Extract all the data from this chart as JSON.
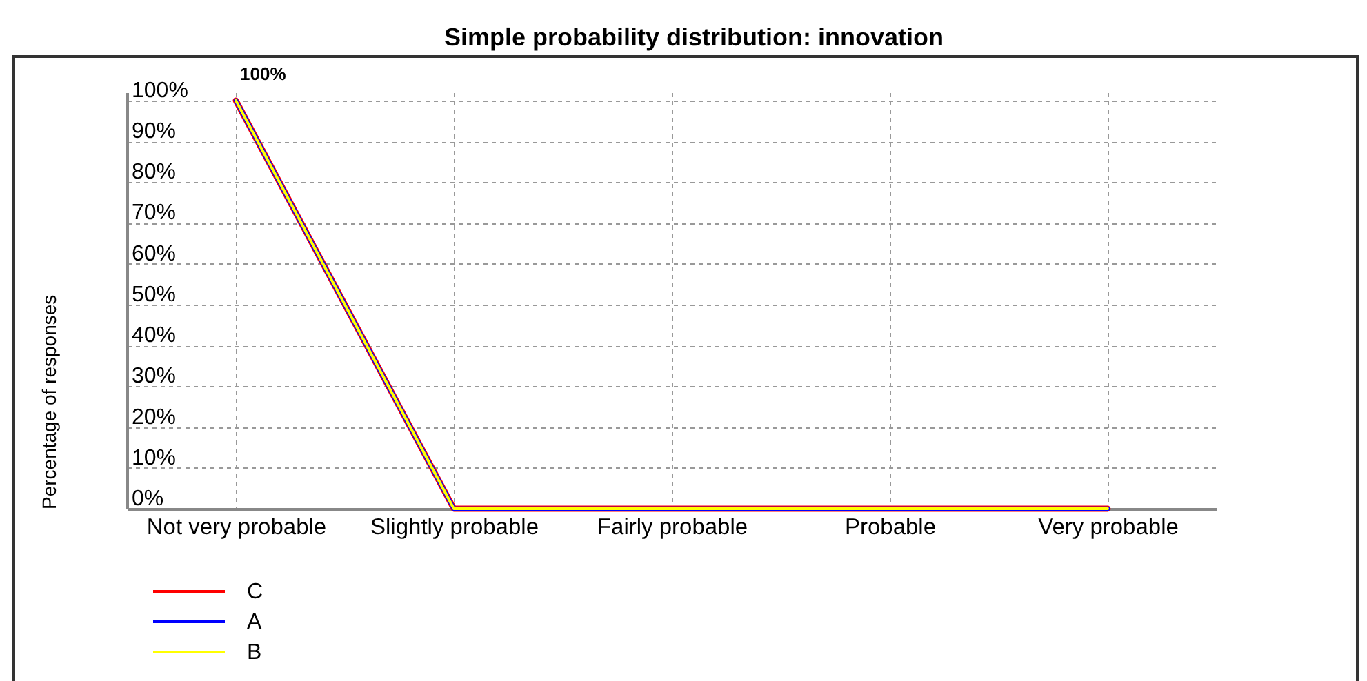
{
  "chart_data": {
    "type": "line",
    "title": "Simple probability distribution: innovation",
    "ylabel": "Percentage of responses",
    "categories": [
      "Not very probable",
      "Slightly probable",
      "Fairly probable",
      "Probable",
      "Very probable"
    ],
    "series": [
      {
        "name": "C",
        "color": "#ff0000",
        "values": [
          100,
          0,
          0,
          0,
          0
        ]
      },
      {
        "name": "A",
        "color": "#0000ff",
        "values": [
          100,
          0,
          0,
          0,
          0
        ]
      },
      {
        "name": "B",
        "color": "#ffff00",
        "values": [
          100,
          0,
          0,
          0,
          0
        ],
        "value_labels": [
          "100%",
          null,
          null,
          null,
          null
        ]
      }
    ],
    "ylim": [
      0,
      102
    ],
    "yticks": [
      {
        "value": 0,
        "label": "0%"
      },
      {
        "value": 10,
        "label": "10%"
      },
      {
        "value": 20,
        "label": "20%"
      },
      {
        "value": 30,
        "label": "30%"
      },
      {
        "value": 40,
        "label": "40%"
      },
      {
        "value": 50,
        "label": "50%"
      },
      {
        "value": 60,
        "label": "60%"
      },
      {
        "value": 70,
        "label": "70%"
      },
      {
        "value": 80,
        "label": "80%"
      },
      {
        "value": 90,
        "label": "90%"
      },
      {
        "value": 100,
        "label": "100%"
      }
    ],
    "grid": true,
    "legend": "bottom left"
  }
}
